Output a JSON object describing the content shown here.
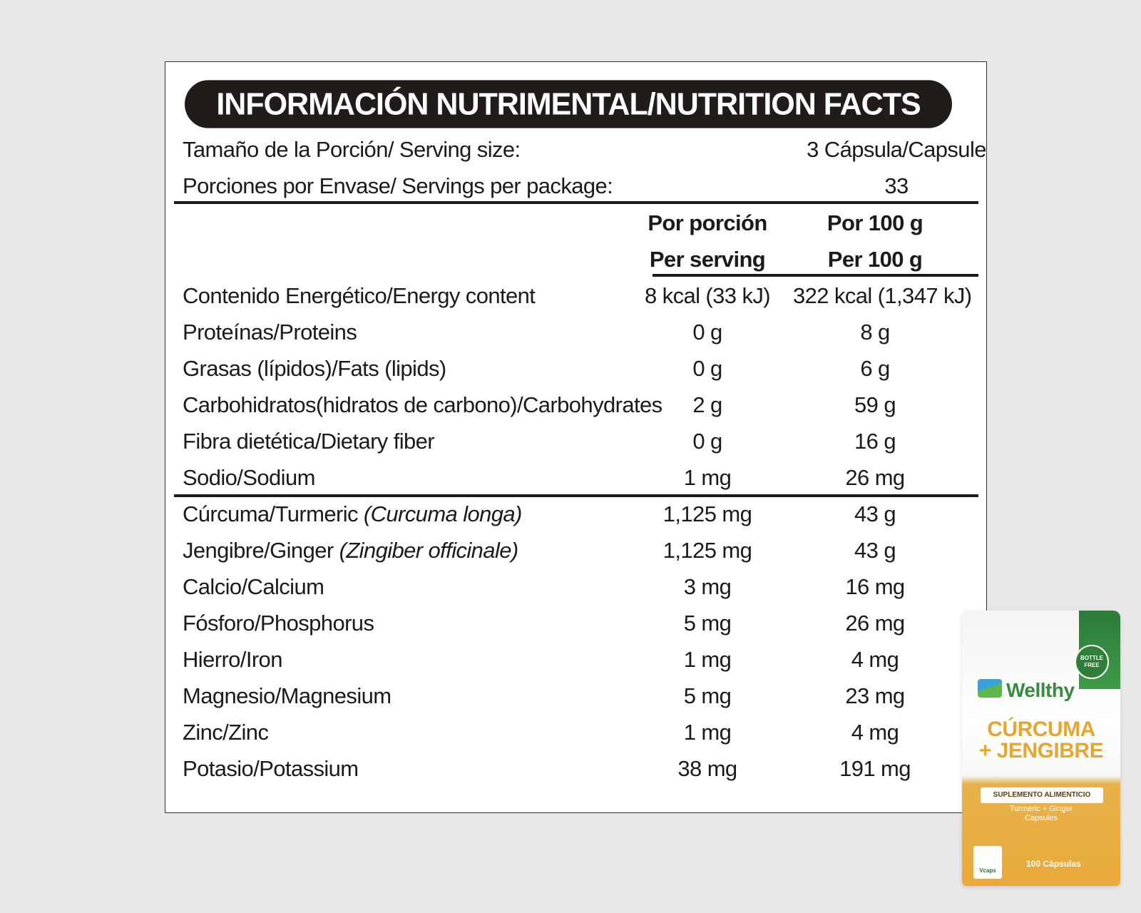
{
  "title": "INFORMACIÓN NUTRIMENTAL/NUTRITION FACTS",
  "serving_size": {
    "label": "Tamaño de la Porción/ Serving size:",
    "value": "3 Cápsula/Capsule"
  },
  "servings_per_package": {
    "label": "Porciones por Envase/ Servings per package:",
    "value": "33"
  },
  "columns": {
    "per_serving_es": "Por porción",
    "per_serving_en": "Per serving",
    "per_100_es": "Por 100 g",
    "per_100_en": "Per 100 g"
  },
  "nutrients": [
    {
      "label": "Contenido Energético/Energy content",
      "per_serving": "8 kcal (33 kJ)",
      "per_100": "322 kcal (1,347 kJ)"
    },
    {
      "label": "Proteínas/Proteins",
      "per_serving": "0 g",
      "per_100": "8 g"
    },
    {
      "label": "Grasas (lípidos)/Fats (lipids)",
      "per_serving": "0 g",
      "per_100": "6 g"
    },
    {
      "label": "Carbohidratos(hidratos de carbono)/Carbohydrates",
      "per_serving": "2 g",
      "per_100": "59 g"
    },
    {
      "label": "Fibra dietética/Dietary fiber",
      "per_serving": "0 g",
      "per_100": "16 g"
    },
    {
      "label": "Sodio/Sodium",
      "per_serving": "1 mg",
      "per_100": "26 mg"
    }
  ],
  "ingredients": [
    {
      "label": "Cúrcuma/Turmeric ",
      "scientific": "(Curcuma longa)",
      "per_serving": "1,125 mg",
      "per_100": "43 g"
    },
    {
      "label": "Jengibre/Ginger ",
      "scientific": "(Zingiber officinale)",
      "per_serving": "1,125 mg",
      "per_100": "43 g"
    },
    {
      "label": "Calcio/Calcium",
      "scientific": "",
      "per_serving": "3 mg",
      "per_100": "16 mg"
    },
    {
      "label": "Fósforo/Phosphorus",
      "scientific": "",
      "per_serving": "5 mg",
      "per_100": "26 mg"
    },
    {
      "label": "Hierro/Iron",
      "scientific": "",
      "per_serving": "1 mg",
      "per_100": "4 mg"
    },
    {
      "label": "Magnesio/Magnesium",
      "scientific": "",
      "per_serving": "5 mg",
      "per_100": "23 mg"
    },
    {
      "label": "Zinc/Zinc",
      "scientific": "",
      "per_serving": "1 mg",
      "per_100": "4 mg"
    },
    {
      "label": "Potasio/Potassium",
      "scientific": "",
      "per_serving": "38 mg",
      "per_100": "191 mg"
    }
  ],
  "product": {
    "brand": "Wellthy",
    "name_line1": "CÚRCUMA",
    "name_line2": "+ JENGIBRE",
    "type_label": "SUPLEMENTO ALIMENTICIO",
    "subtitle_line1": "Turmeric + Ginger",
    "subtitle_line2": "Capsules",
    "count": "100 Cápsulas",
    "badge": "BOTTLE FREE",
    "caps_brand": "Vcaps"
  },
  "colors": {
    "background": "#e8e8e8",
    "title_bar": "#211c1a",
    "text": "#1e1a18",
    "pouch_accent": "#e9a93a",
    "brand_green": "#3a8a3f"
  }
}
